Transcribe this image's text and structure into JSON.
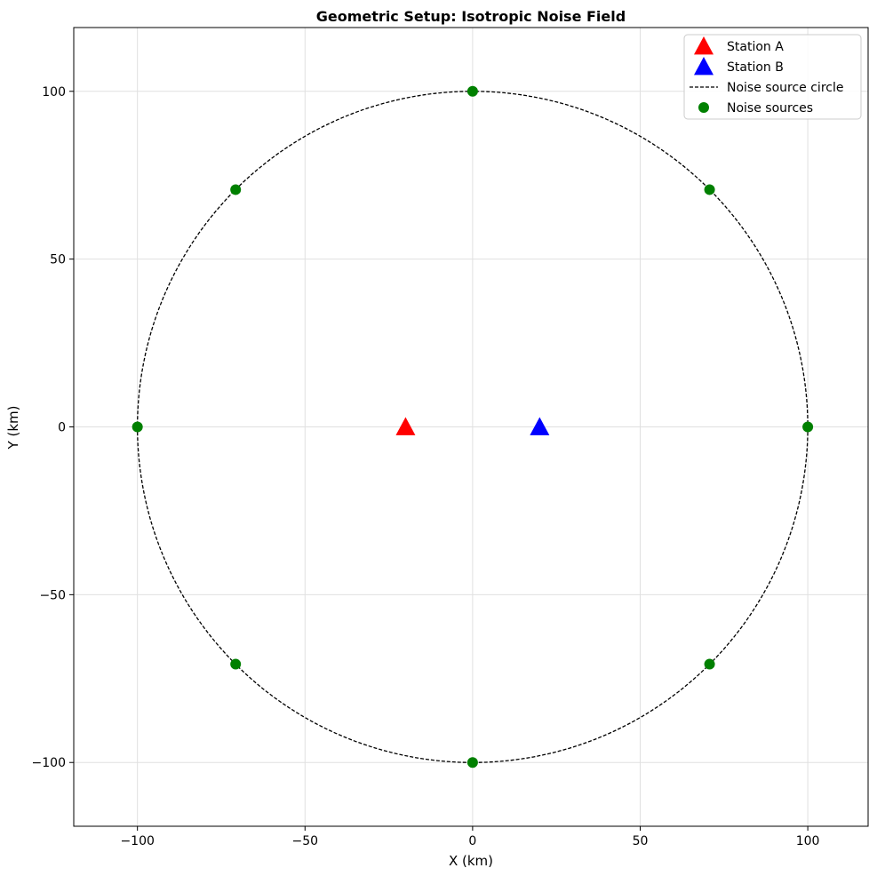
{
  "chart_data": {
    "type": "scatter",
    "title": "Geometric Setup: Isotropic Noise Field",
    "xlabel": "X (km)",
    "ylabel": "Y (km)",
    "xlim": [
      -119,
      118
    ],
    "ylim": [
      -119,
      119
    ],
    "grid": true,
    "legend_position": "top-right",
    "xticks": [
      -100,
      -50,
      0,
      50,
      100
    ],
    "yticks": [
      -100,
      -50,
      0,
      50,
      100
    ],
    "xtick_labels": [
      "−100",
      "−50",
      "0",
      "50",
      "100"
    ],
    "ytick_labels": [
      "−100",
      "−50",
      "0",
      "50",
      "100"
    ],
    "series": [
      {
        "name": "Station A",
        "marker": "triangle",
        "color": "#ff0000",
        "points": [
          [
            -20,
            0
          ]
        ]
      },
      {
        "name": "Station B",
        "marker": "triangle",
        "color": "#0000ff",
        "points": [
          [
            20,
            0
          ]
        ]
      },
      {
        "name": "Noise source circle",
        "marker": "dashed-circle",
        "color": "#000000",
        "center": [
          0,
          0
        ],
        "radius": 100
      },
      {
        "name": "Noise sources",
        "marker": "circle",
        "color": "#008000",
        "points": [
          [
            100,
            0
          ],
          [
            70.7,
            70.7
          ],
          [
            0,
            100
          ],
          [
            -70.7,
            70.7
          ],
          [
            -100,
            0
          ],
          [
            -70.7,
            -70.7
          ],
          [
            0,
            -100
          ],
          [
            70.7,
            -70.7
          ]
        ]
      }
    ]
  }
}
